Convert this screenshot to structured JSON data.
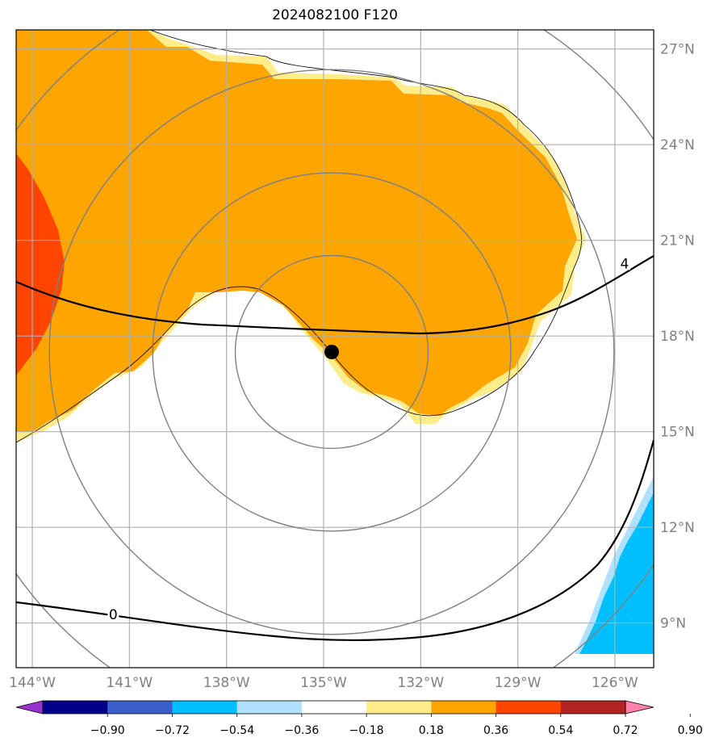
{
  "title": "2024082100 F120",
  "map": {
    "lon_range": [
      -144.5,
      -124.8
    ],
    "lat_range": [
      7.6,
      27.6
    ],
    "lon_ticks": [
      {
        "value": -144,
        "label": "144°W"
      },
      {
        "value": -141,
        "label": "141°W"
      },
      {
        "value": -138,
        "label": "138°W"
      },
      {
        "value": -135,
        "label": "135°W"
      },
      {
        "value": -132,
        "label": "132°W"
      },
      {
        "value": -129,
        "label": "129°W"
      },
      {
        "value": -126,
        "label": "126°W"
      }
    ],
    "lat_ticks": [
      {
        "value": 27,
        "label": "27°N"
      },
      {
        "value": 24,
        "label": "24°N"
      },
      {
        "value": 21,
        "label": "21°N"
      },
      {
        "value": 18,
        "label": "18°N"
      },
      {
        "value": 15,
        "label": "15°N"
      },
      {
        "value": 12,
        "label": "12°N"
      },
      {
        "value": 9,
        "label": "9°N"
      }
    ],
    "storm_center": {
      "lon": -134.75,
      "lat": 17.5
    },
    "range_rings_deg": [
      2.8,
      5.2,
      8.2,
      11.2
    ],
    "contour_labels": [
      {
        "text": "4",
        "lon": -125.7,
        "lat": 20.2
      },
      {
        "text": "0",
        "lon": -141.5,
        "lat": 9.2
      }
    ]
  },
  "colorbar": {
    "colors": [
      "#9932cc",
      "#00008b",
      "#3a5fcd",
      "#00bfff",
      "#b0e2ff",
      "#ffffff",
      "#ffec8b",
      "#ffa500",
      "#ff4500",
      "#b22222",
      "#ff82ab"
    ],
    "ticks": [
      "−0.90",
      "−0.72",
      "−0.54",
      "−0.36",
      "−0.18",
      "0.18",
      "0.36",
      "0.54",
      "0.72",
      "0.90"
    ]
  },
  "fill_colors": {
    "light": "#ffec8b",
    "orange": "#ffa500",
    "red": "#ff4500",
    "blue": "#00bfff",
    "lightblue": "#b0e2ff"
  }
}
